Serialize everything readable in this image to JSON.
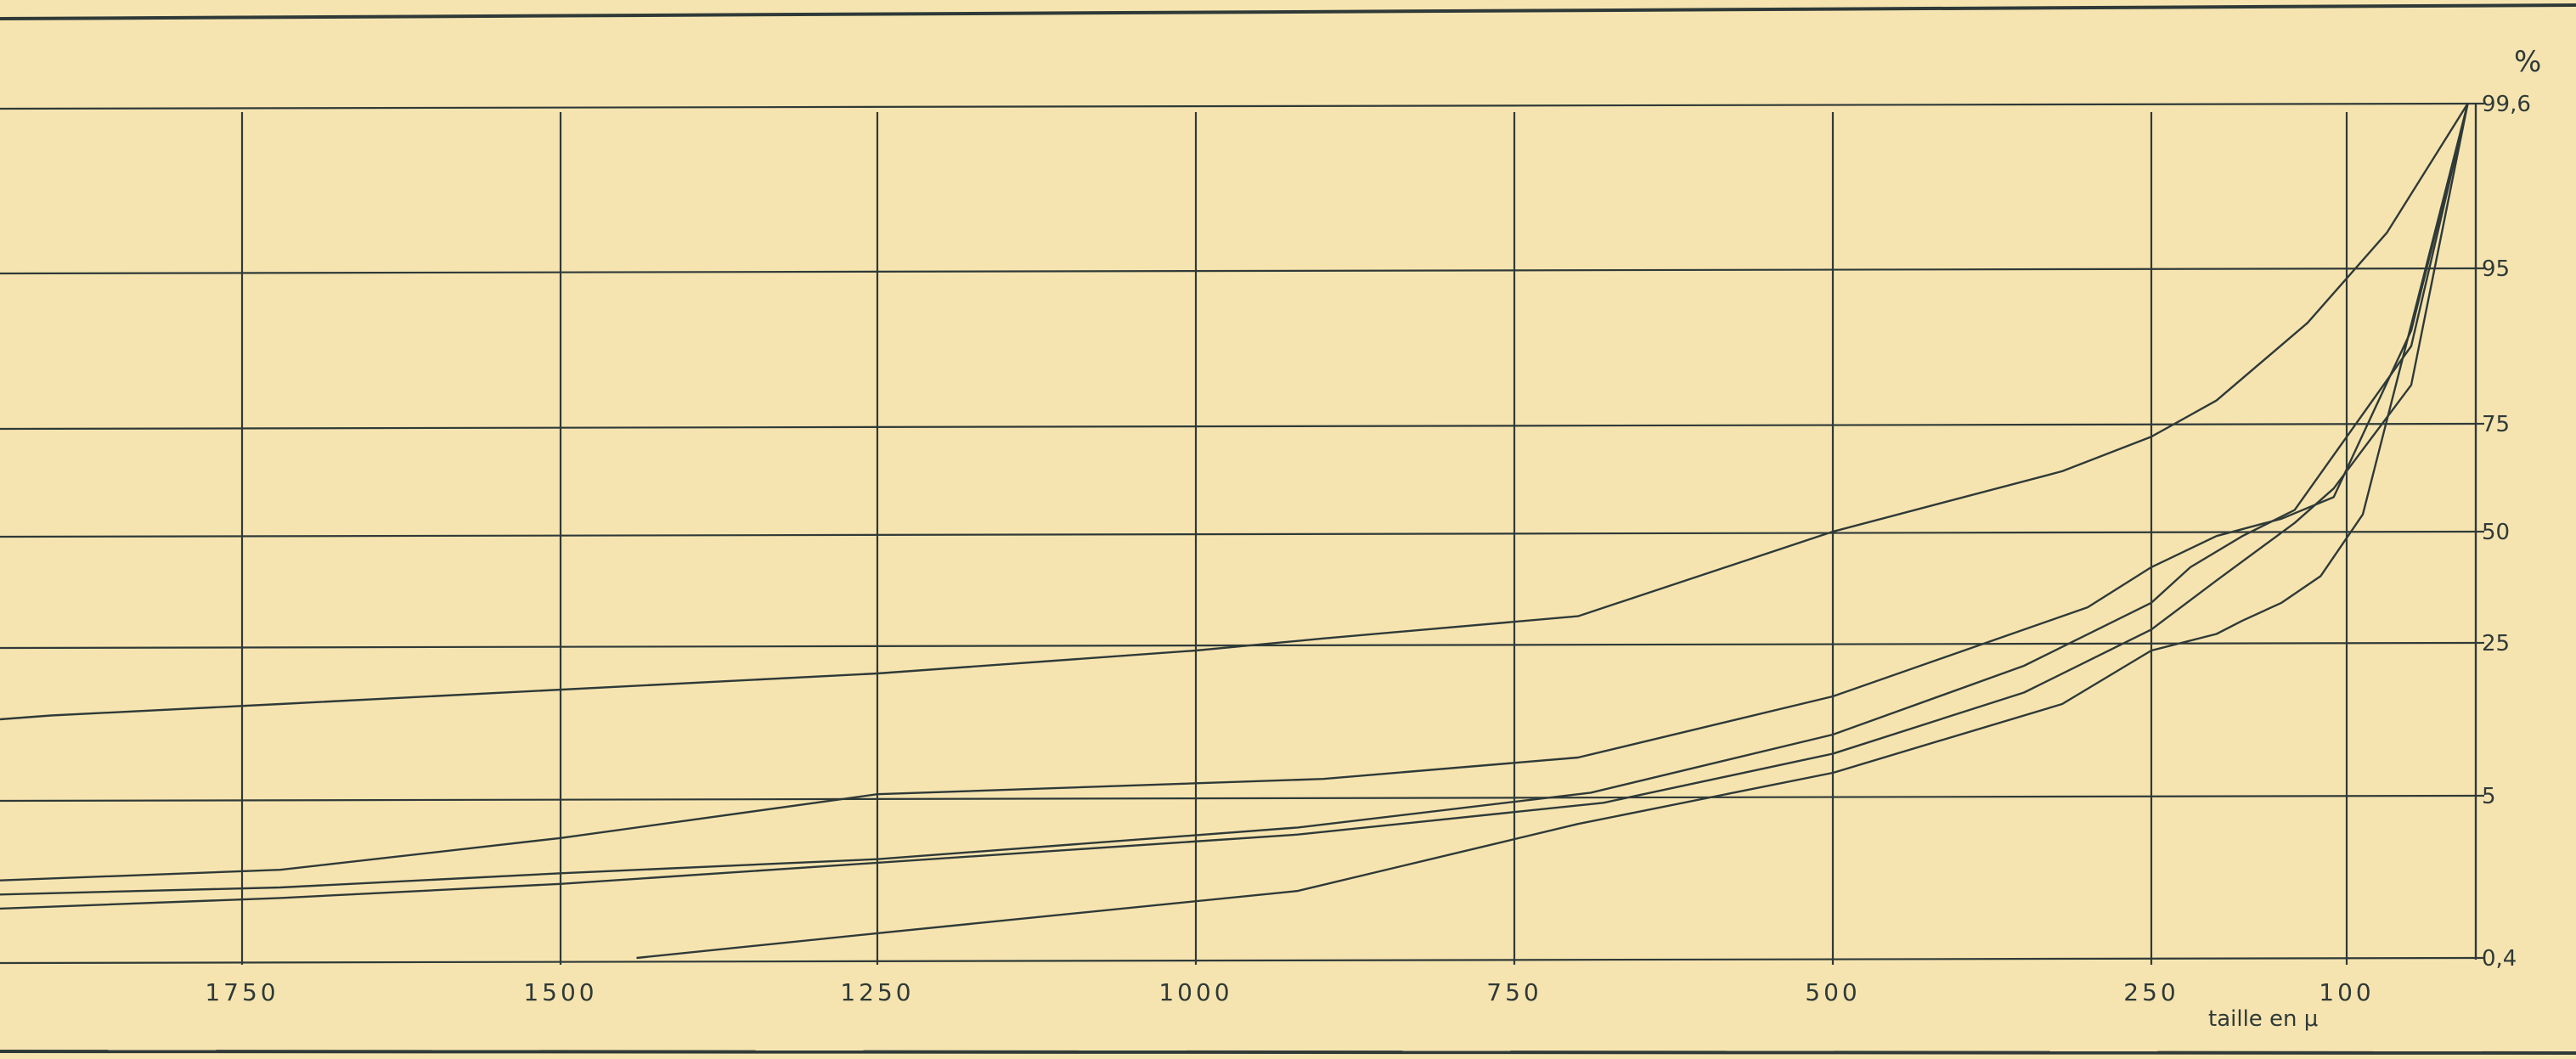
{
  "chart_data": {
    "type": "line",
    "title": "",
    "xlabel": "taille en μ",
    "ylabel": "%",
    "x_scale": "piecewise (100 to 250 expanded)",
    "y_scale": "probability",
    "x_ticks": [
      1750,
      1500,
      1250,
      1000,
      750,
      500,
      250,
      100
    ],
    "x_tick_labels": [
      "1750",
      "1500",
      "1250",
      "1000",
      "750",
      "500",
      "250",
      "100"
    ],
    "y_ticks": [
      0.4,
      5,
      25,
      50,
      75,
      95,
      99.6
    ],
    "y_tick_labels": [
      "0,4",
      "5",
      "25",
      "50",
      "75",
      "95",
      "99,6"
    ],
    "xlim": [
      1940,
      20
    ],
    "ylim": [
      0.4,
      99.6
    ],
    "grid": true,
    "legend": "none",
    "line_color": "#2f3a38",
    "background_color": "#f6e4b0",
    "series": [
      {
        "x": [
          1940,
          1900,
          1720,
          1250,
          1000,
          900,
          700,
          500,
          320,
          250,
          200,
          130,
          75,
          25
        ],
        "y": [
          15,
          15.5,
          17,
          21,
          24,
          26,
          31,
          50,
          64,
          72,
          78,
          88,
          96,
          99.6
        ]
      },
      {
        "x": [
          1940,
          1720,
          1500,
          1250,
          900,
          700,
          500,
          300,
          250,
          200,
          150,
          110,
          60,
          25
        ],
        "y": [
          2.6,
          2.9,
          3.8,
          5.2,
          7.2,
          10,
          18,
          33,
          42,
          49,
          53,
          58,
          87,
          99.6
        ]
      },
      {
        "x": [
          1940,
          1720,
          1500,
          1250,
          920,
          690,
          500,
          350,
          250,
          220,
          180,
          140,
          60,
          25
        ],
        "y": [
          2.2,
          2.4,
          2.8,
          3.2,
          4.1,
          5.4,
          13,
          22,
          34,
          42,
          49,
          55,
          85,
          99.6
        ]
      },
      {
        "x": [
          1940,
          1720,
          1500,
          1250,
          920,
          680,
          500,
          350,
          250,
          200,
          140,
          110,
          60,
          25
        ],
        "y": [
          1.8,
          2.1,
          2.5,
          3.1,
          3.9,
          4.8,
          10.5,
          18.5,
          28,
          39,
          52,
          60,
          80,
          99.6
        ]
      },
      {
        "x": [
          1440,
          1250,
          920,
          700,
          500,
          320,
          250,
          200,
          180,
          150,
          120,
          90,
          25
        ],
        "y": [
          0.4,
          1.1,
          2.3,
          4.2,
          8,
          17,
          24,
          27,
          30,
          34,
          40,
          54,
          99.6
        ]
      }
    ]
  }
}
